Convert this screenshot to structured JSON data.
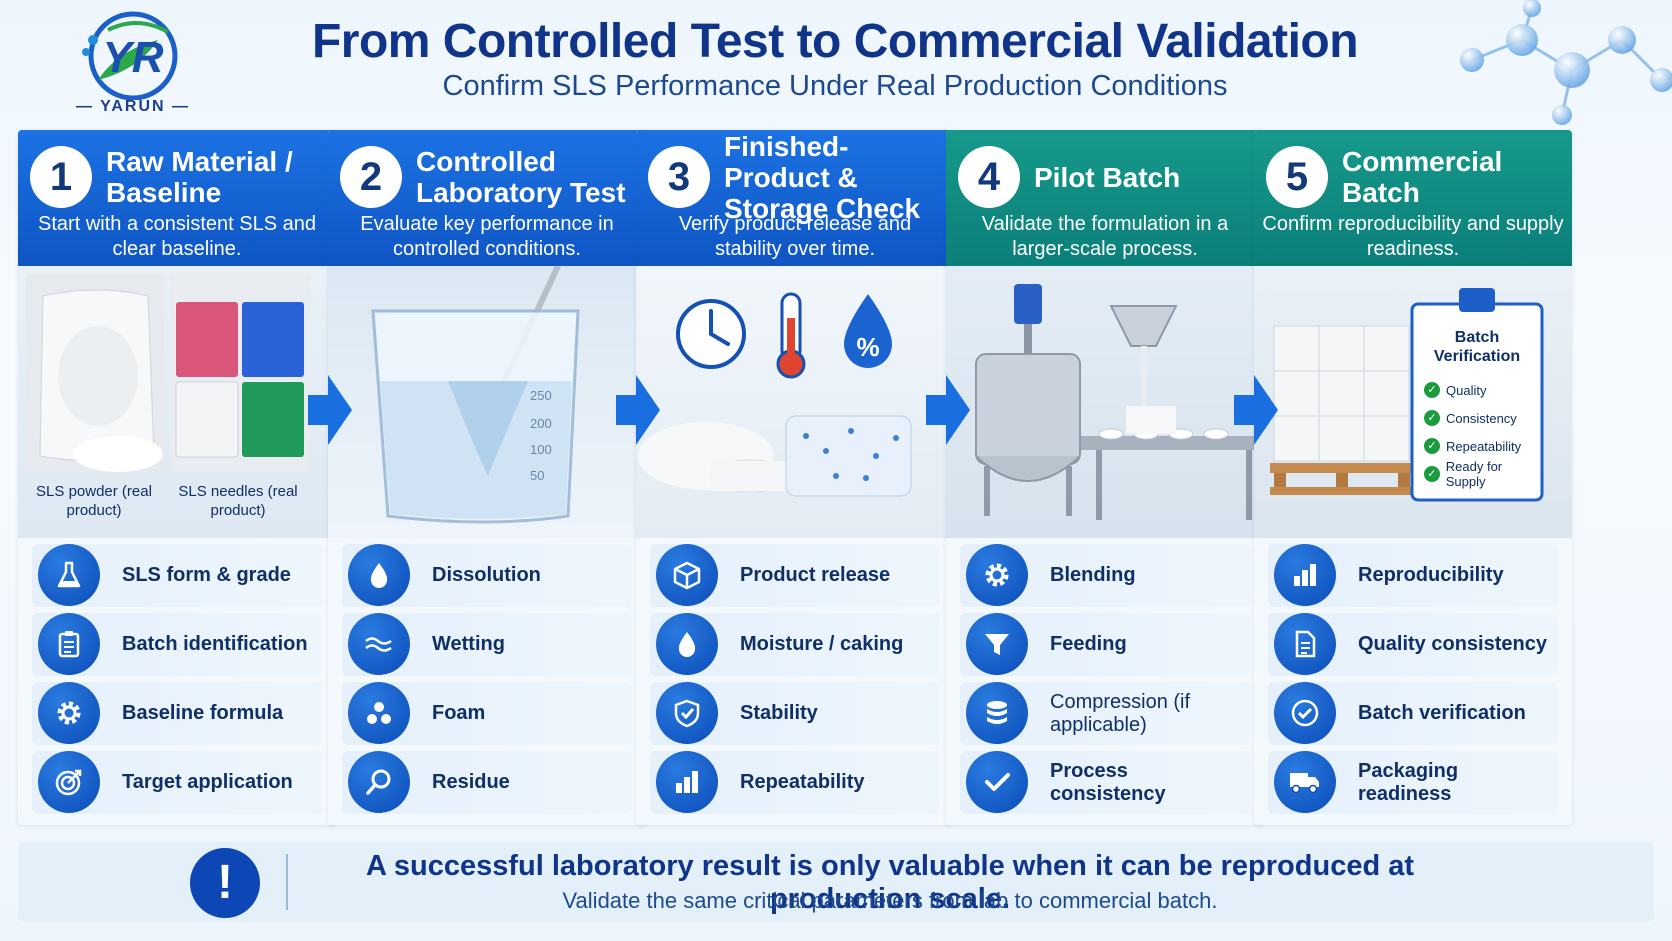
{
  "brand": {
    "logo_letters": "YR",
    "name": "YARUN"
  },
  "header": {
    "title": "From Controlled Test to Commercial Validation",
    "subtitle": "Confirm SLS Performance Under Real Production Conditions"
  },
  "colors": {
    "step_header_blue": "#1667d9",
    "step_header_teal": "#139a8a",
    "icon_blue": "#0b4cb8",
    "title_navy": "#0f3489",
    "check_green": "#1a9b3e"
  },
  "steps": [
    {
      "number": "1",
      "title": "Raw Material / Baseline",
      "description": "Start with a consistent SLS and clear baseline.",
      "image_captions": [
        "SLS powder (real product)",
        "SLS needles (real product)"
      ],
      "items": [
        {
          "icon": "flask-icon",
          "label": "SLS form & grade"
        },
        {
          "icon": "clipboard-icon",
          "label": "Batch identification"
        },
        {
          "icon": "gear-icon",
          "label": "Baseline formula"
        },
        {
          "icon": "target-icon",
          "label": "Target application"
        }
      ]
    },
    {
      "number": "2",
      "title": "Controlled Laboratory Test",
      "description": "Evaluate key performance in controlled conditions.",
      "beaker_marks": [
        "250",
        "200",
        "100",
        "50"
      ],
      "items": [
        {
          "icon": "droplet-icon",
          "label": "Dissolution"
        },
        {
          "icon": "wave-icon",
          "label": "Wetting"
        },
        {
          "icon": "bubbles-icon",
          "label": "Foam"
        },
        {
          "icon": "magnifier-icon",
          "label": "Residue"
        }
      ]
    },
    {
      "number": "3",
      "title": "Finished-Product & Storage Check",
      "description": "Verify product release and stability over time.",
      "image_icons": [
        "clock-icon",
        "thermometer-icon",
        "humidity-icon"
      ],
      "items": [
        {
          "icon": "box-icon",
          "label": "Product release"
        },
        {
          "icon": "droplet-icon",
          "label": "Moisture / caking"
        },
        {
          "icon": "shield-check-icon",
          "label": "Stability"
        },
        {
          "icon": "bar-chart-icon",
          "label": "Repeatability"
        }
      ]
    },
    {
      "number": "4",
      "title": "Pilot Batch",
      "description": "Validate the formulation in a larger-scale process.",
      "items": [
        {
          "icon": "gear-icon",
          "label": "Blending"
        },
        {
          "icon": "funnel-icon",
          "label": "Feeding"
        },
        {
          "icon": "database-icon",
          "label": "Compression (if applicable)"
        },
        {
          "icon": "check-icon",
          "label": "Process consistency"
        }
      ]
    },
    {
      "number": "5",
      "title": "Commercial Batch",
      "description": "Confirm reproducibility and supply readiness.",
      "verification_card": {
        "title": "Batch Verification",
        "checks": [
          "Quality",
          "Consistency",
          "Repeatability",
          "Ready for Supply"
        ]
      },
      "items": [
        {
          "icon": "bar-chart-icon",
          "label": "Reproducibility"
        },
        {
          "icon": "document-icon",
          "label": "Quality consistency"
        },
        {
          "icon": "check-circle-icon",
          "label": "Batch verification"
        },
        {
          "icon": "truck-icon",
          "label": "Packaging readiness"
        }
      ]
    }
  ],
  "banner": {
    "icon": "exclamation-icon",
    "main": "A successful laboratory result is only valuable when it can be reproduced at production scale.",
    "sub": "Validate the same critical parameters from lab to commercial batch."
  }
}
